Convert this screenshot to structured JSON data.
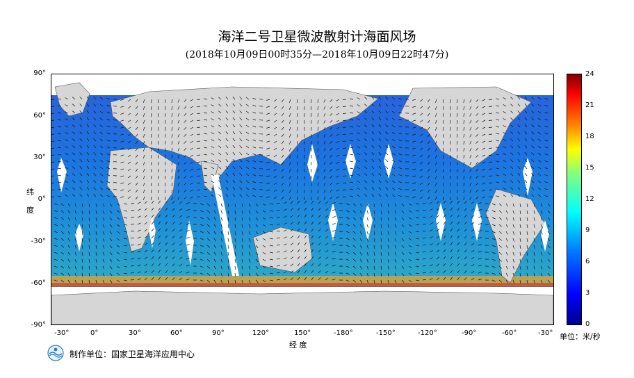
{
  "header": {
    "title": "海洋二号卫星微波散射计海面风场",
    "subtitle": "(2018年10月09日00时35分—2018年10月09日22时47分)"
  },
  "axes": {
    "y_title": [
      "纬",
      "度"
    ],
    "x_title": "经  度",
    "lat_ticks": [
      "90°",
      "60°",
      "30°",
      "0°",
      "-30°",
      "-60°",
      "-90°"
    ],
    "lon_ticks": [
      "-30°",
      "0°",
      "30°",
      "60°",
      "90°",
      "120°",
      "150°",
      "-180°",
      "-150°",
      "-120°",
      "-90°",
      "-60°",
      "-30°"
    ]
  },
  "colorbar": {
    "ticks": [
      "24",
      "21",
      "18",
      "15",
      "12",
      "9",
      "6",
      "3",
      "0"
    ],
    "unit": "单位：米/秒",
    "range": [
      0,
      24
    ]
  },
  "footer": {
    "producer": "制作单位：国家卫星海洋应用中心"
  }
}
